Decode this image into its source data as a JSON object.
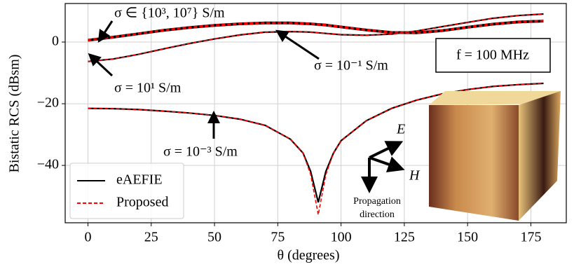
{
  "chart_data": {
    "type": "line",
    "xlabel": "θ (degrees)",
    "ylabel": "Bistatic RCS (dBsm)",
    "x": [
      0,
      10,
      20,
      30,
      40,
      50,
      60,
      70,
      80,
      85,
      88,
      91,
      94,
      97,
      100,
      110,
      120,
      130,
      140,
      150,
      160,
      170,
      180
    ],
    "xlim": [
      -9,
      189
    ],
    "xticks": [
      0,
      25,
      50,
      75,
      100,
      125,
      150,
      175
    ],
    "ylim": [
      -58.6,
      12.5
    ],
    "yticks": [
      {
        "value": -40,
        "label": "−40"
      },
      {
        "value": -20,
        "label": "−20"
      },
      0
    ],
    "grid": true,
    "legend": "lower left",
    "series": [
      {
        "name": "eAEFIE",
        "color": "#000000",
        "dashed": false,
        "curves": [
          [
            0.8,
            1.8,
            2.9,
            4,
            4.9,
            5.6,
            6.1,
            6.4,
            6.4,
            6.2,
            6.1,
            5.9,
            5.7,
            5.4,
            5.1,
            4.1,
            3.3,
            3.2,
            3.9,
            5,
            6,
            6.7,
            7.0
          ],
          [
            0.4,
            1.4,
            2.5,
            3.6,
            4.5,
            5.2,
            5.7,
            6.0,
            6.0,
            5.8,
            5.7,
            5.5,
            5.3,
            5.0,
            4.7,
            3.7,
            2.9,
            2.8,
            3.5,
            4.6,
            5.6,
            6.3,
            6.6
          ],
          [
            -6.3,
            -5.5,
            -4,
            -2.2,
            -0.5,
            1,
            2.3,
            3.2,
            3.4,
            3.3,
            3.2,
            3,
            2.8,
            2.6,
            2.4,
            2.2,
            2.6,
            3.6,
            5,
            6.4,
            7.7,
            8.6,
            9.1
          ],
          [
            -21.5,
            -21.6,
            -21.9,
            -22.4,
            -23,
            -23.8,
            -25,
            -27,
            -31.5,
            -36,
            -42,
            -52,
            -42,
            -36,
            -32,
            -25.5,
            -21.5,
            -18.8,
            -16.8,
            -15.4,
            -14.4,
            -13.8,
            -13.4
          ]
        ]
      },
      {
        "name": "Proposed",
        "color": "#ff0000",
        "dashed": true,
        "curves": [
          [
            0.8,
            1.8,
            2.9,
            4,
            4.9,
            5.6,
            6.1,
            6.4,
            6.4,
            6.2,
            6.1,
            5.9,
            5.7,
            5.4,
            5.1,
            4.1,
            3.3,
            3.2,
            3.9,
            5,
            6,
            6.7,
            7.0
          ],
          [
            0.4,
            1.4,
            2.5,
            3.6,
            4.5,
            5.2,
            5.7,
            6.0,
            6.0,
            5.8,
            5.7,
            5.5,
            5.3,
            5.0,
            4.7,
            3.7,
            2.9,
            2.8,
            3.5,
            4.6,
            5.6,
            6.3,
            6.6
          ],
          [
            -6.3,
            -5.5,
            -4,
            -2.2,
            -0.5,
            1,
            2.3,
            3.2,
            3.4,
            3.3,
            3.2,
            3,
            2.8,
            2.6,
            2.4,
            2.2,
            2.6,
            3.6,
            5,
            6.4,
            7.7,
            8.6,
            9.1
          ],
          [
            -21.5,
            -21.6,
            -21.9,
            -22.4,
            -23,
            -23.8,
            -25,
            -27,
            -31.5,
            -36,
            -43,
            -56,
            -43,
            -36,
            -32,
            -25.5,
            -21.5,
            -18.8,
            -16.8,
            -15.4,
            -14.4,
            -13.8,
            -13.4
          ]
        ]
      }
    ],
    "annotations": [
      "σ ∈ {10³, 10⁷} S/m",
      "σ = 10¹ S/m",
      "σ = 10⁻¹ S/m",
      "σ = 10⁻³ S/m"
    ],
    "frequency_label": "f = 100 MHz",
    "inset": {
      "e_label": "E",
      "h_label": "H",
      "propagation_label": [
        "Propagation",
        "direction"
      ]
    }
  }
}
